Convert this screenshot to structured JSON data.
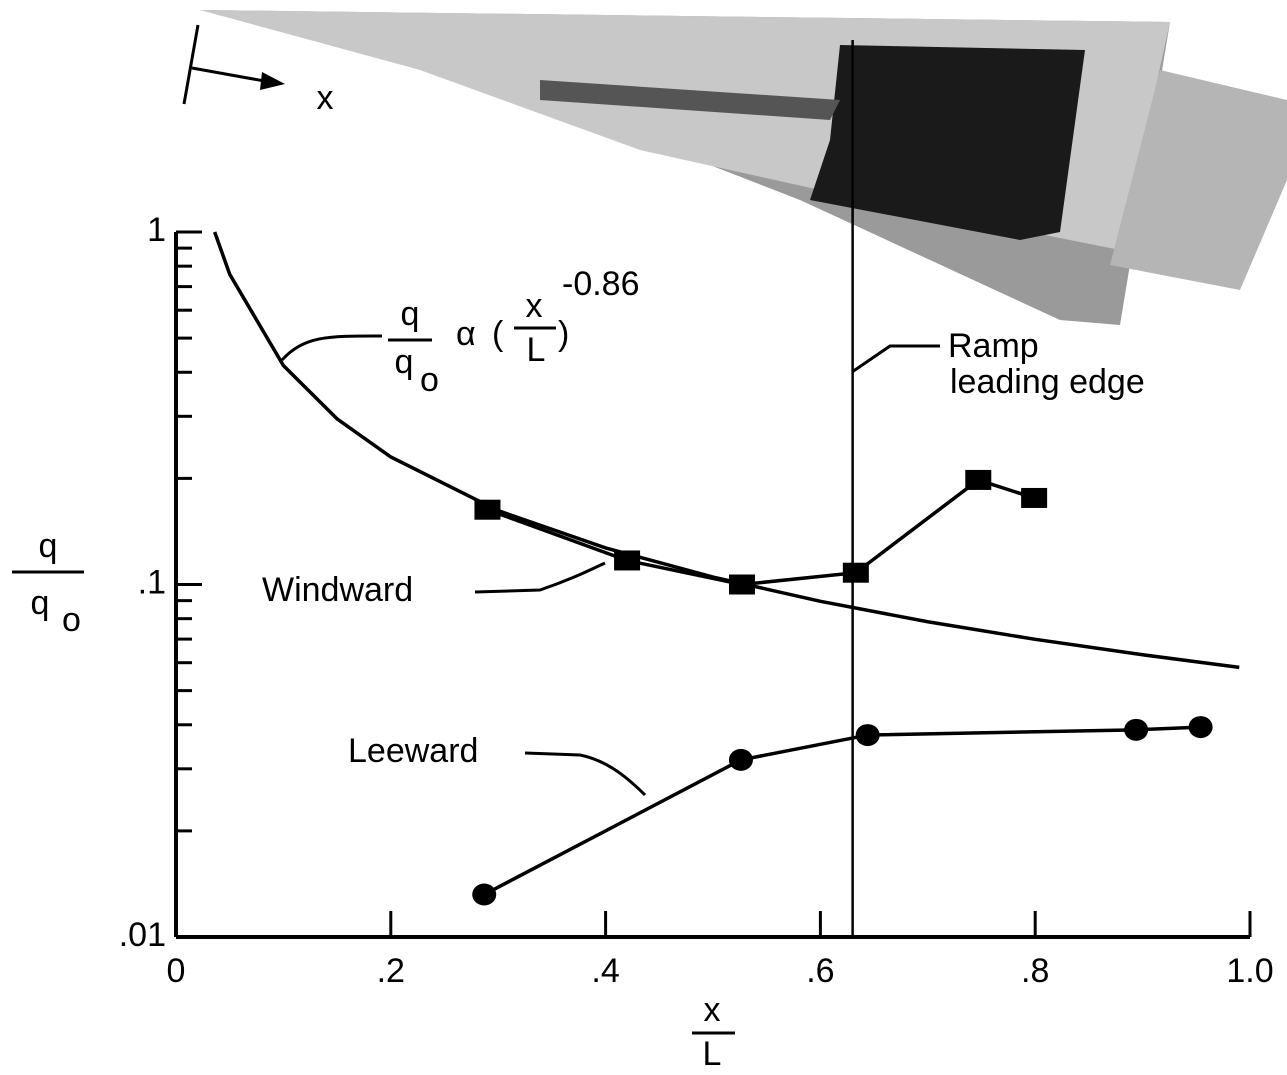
{
  "chart_data": {
    "type": "line",
    "photo_label": "x",
    "x_label": {
      "numerator": "x",
      "denominator": "L"
    },
    "y_label": {
      "numerator": "q",
      "denominator": "q",
      "subscript": "o"
    },
    "formula": {
      "numerator": "q",
      "denominator": "q",
      "subscript": "o",
      "symbol": "α",
      "open": "(",
      "x_num": "x",
      "x_den": "L",
      "close": ")",
      "exponent": "-0.86"
    },
    "log_y": true,
    "xlim": [
      0,
      1.0
    ],
    "ylim": [
      0.01,
      1
    ],
    "xticks": [
      0,
      {
        "value": 0.2,
        "label": ".2"
      },
      {
        "value": 0.4,
        "label": ".4"
      },
      {
        "value": 0.6,
        "label": ".6"
      },
      {
        "value": 0.8,
        "label": ".8"
      },
      {
        "value": 1.0,
        "label": "1.0"
      }
    ],
    "yticks": [
      {
        "value": 0.01,
        "label": ".01"
      },
      {
        "value": 0.1,
        "label": ".1"
      },
      1
    ],
    "yminorticks": [
      0.02,
      0.03,
      0.04,
      0.05,
      0.06,
      0.07,
      0.08,
      0.09,
      0.2,
      0.3,
      0.4,
      0.5,
      0.6,
      0.7,
      0.8,
      0.9
    ],
    "curve": {
      "color": "#000000",
      "x": [
        0.036,
        0.05,
        0.1,
        0.15,
        0.2,
        0.3,
        0.4,
        0.5,
        0.6,
        0.7,
        0.8,
        0.9,
        0.99
      ],
      "values": [
        1.0,
        0.759,
        0.418,
        0.295,
        0.23,
        0.162,
        0.127,
        0.105,
        0.0896,
        0.0784,
        0.0699,
        0.0632,
        0.0582
      ]
    },
    "series": [
      {
        "name": "Windward",
        "marker": "square",
        "color": "#000000",
        "x": [
          0.29,
          0.42,
          0.527,
          0.633,
          0.747,
          0.799
        ],
        "values": [
          0.163,
          0.117,
          0.1,
          0.108,
          0.198,
          0.176
        ]
      },
      {
        "name": "Leeward",
        "marker": "circle",
        "color": "#000000",
        "x": [
          0.287,
          0.526,
          0.644,
          0.894,
          0.954
        ],
        "values": [
          0.0132,
          0.0318,
          0.0374,
          0.0387,
          0.0394
        ]
      }
    ],
    "vline": {
      "x": 0.63,
      "label": [
        "Ramp",
        "leading edge"
      ]
    }
  }
}
